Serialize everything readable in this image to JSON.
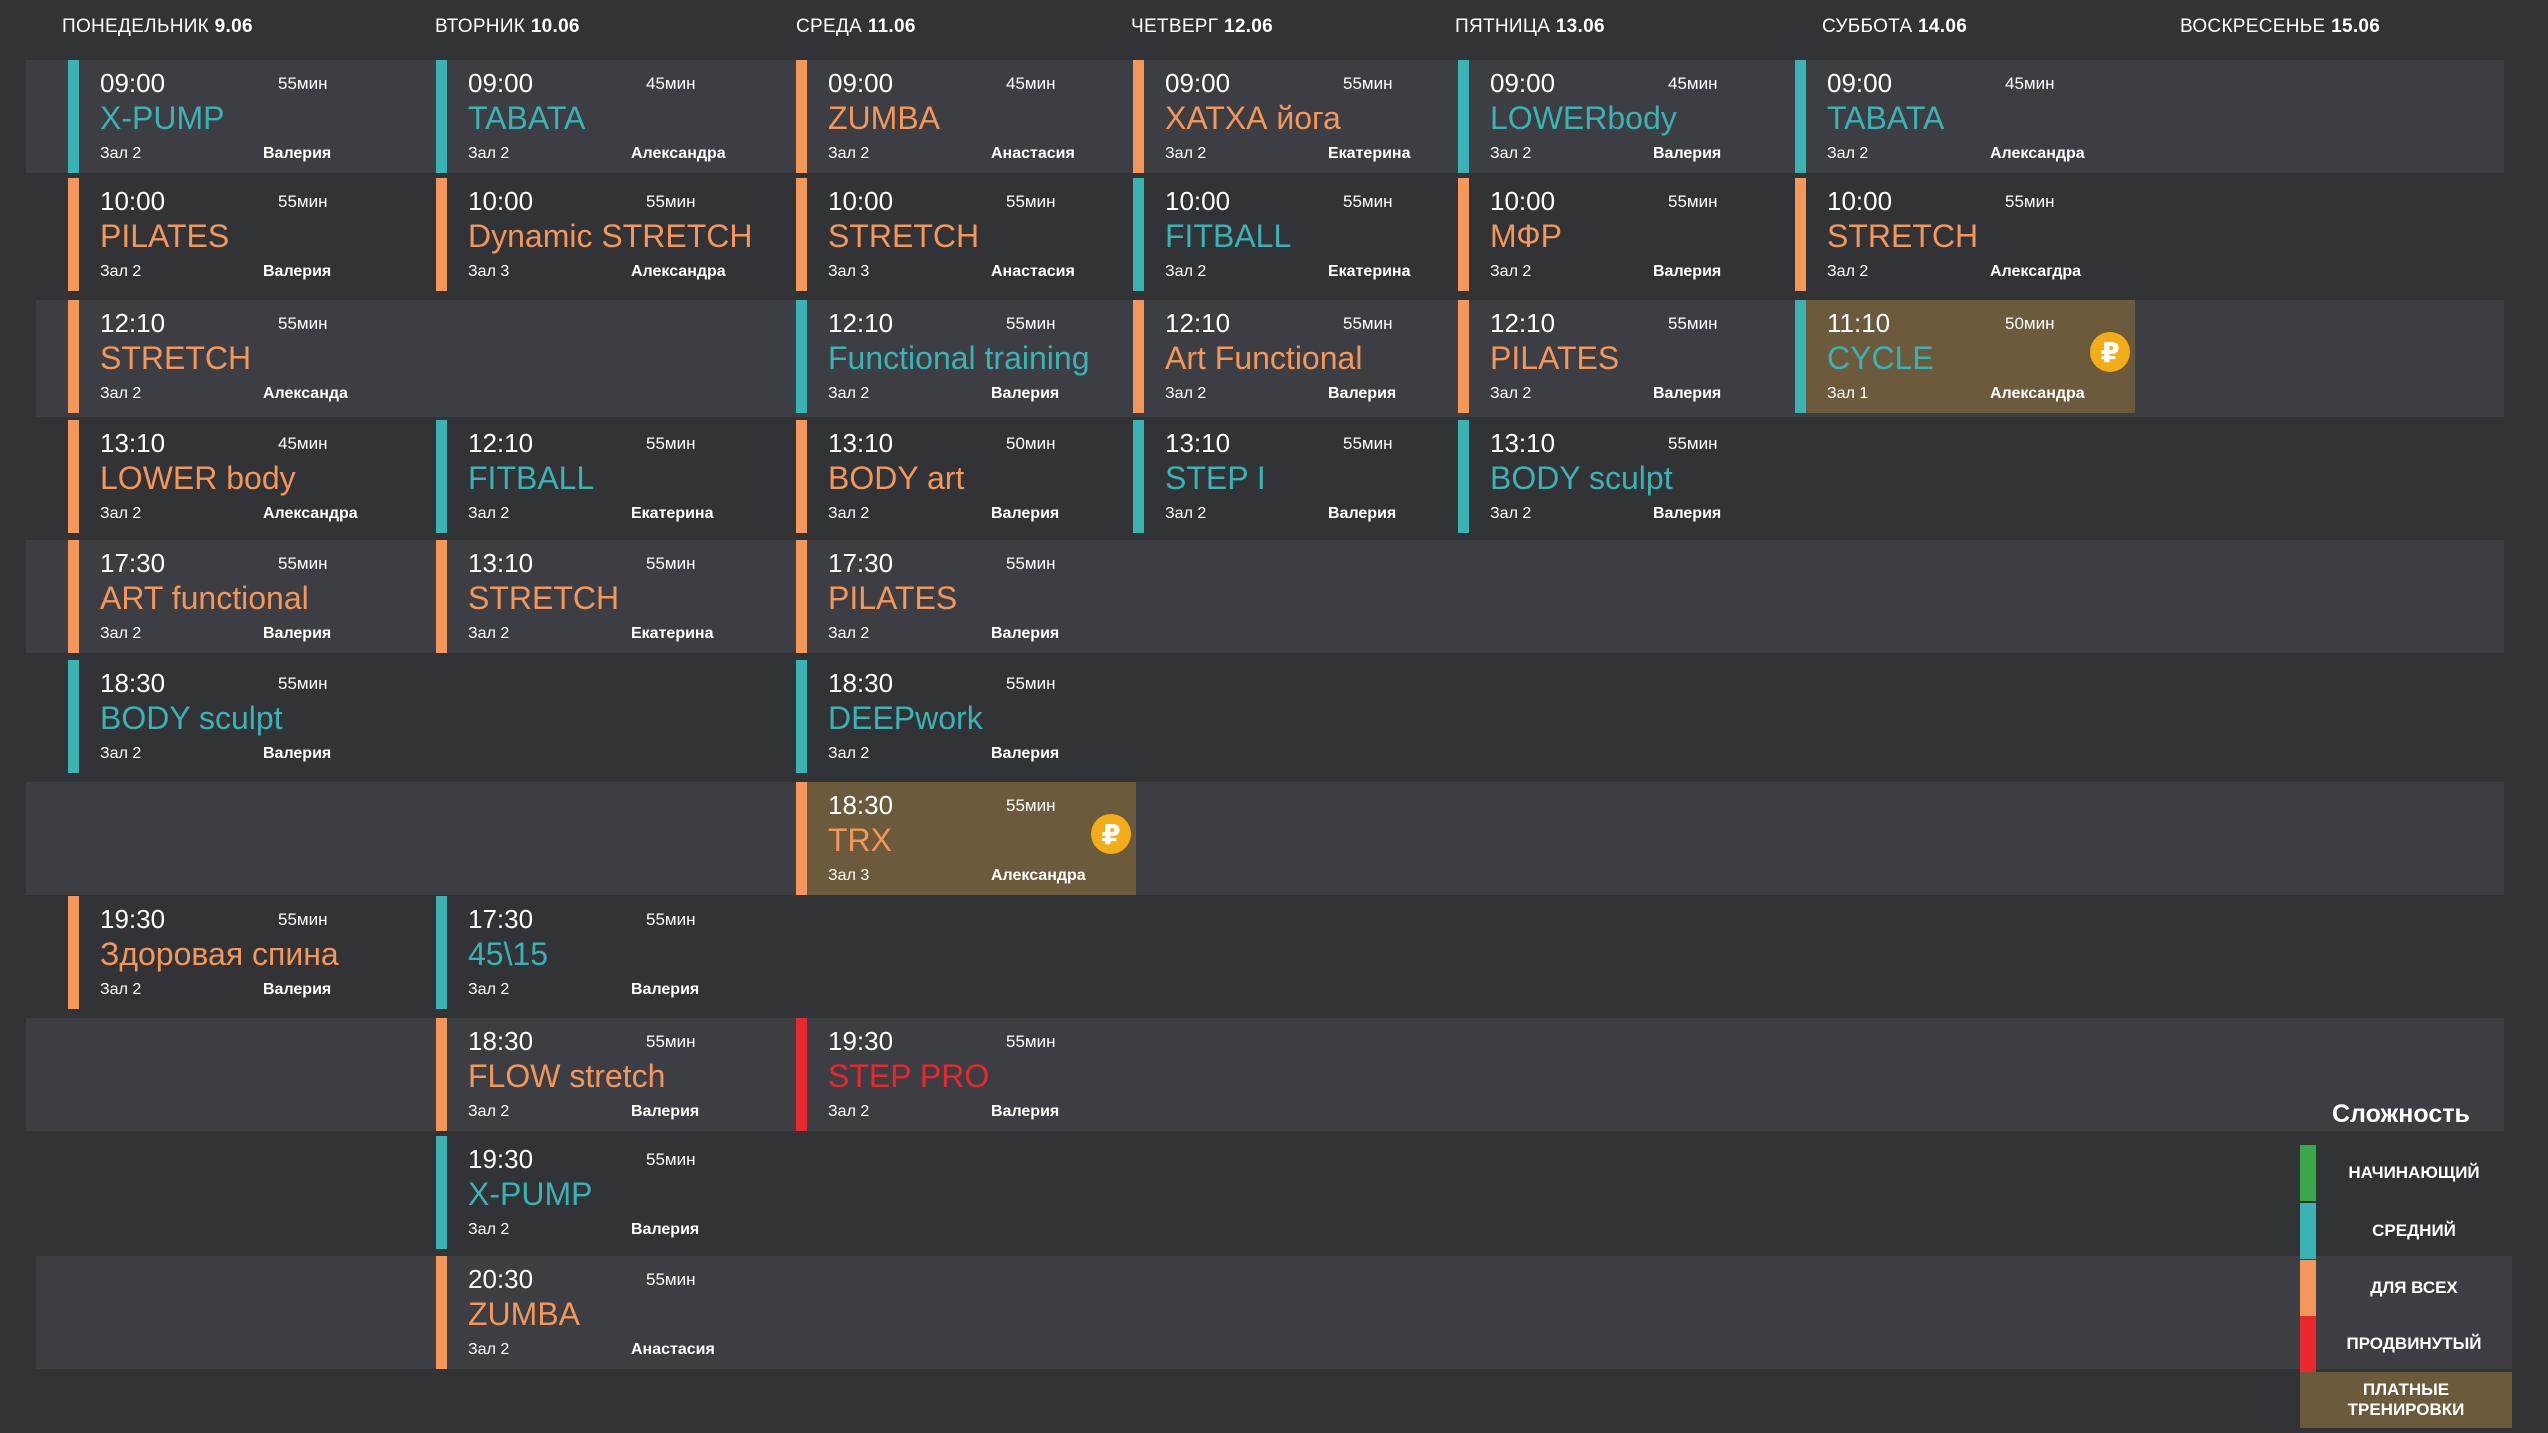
{
  "colors": {
    "beginner": "#3aa84a",
    "medium": "#3bb3b4",
    "everyone": "#f3975a",
    "advanced": "#e8282c",
    "paid": "#6b5a3b",
    "ruble": "#f2ad18"
  },
  "days": [
    {
      "name": "ПОНЕДЕЛЬНИК",
      "date": "9.06"
    },
    {
      "name": "ВТОРНИК",
      "date": "10.06"
    },
    {
      "name": "СРЕДА",
      "date": "11.06"
    },
    {
      "name": "ЧЕТВЕРГ",
      "date": "12.06"
    },
    {
      "name": "ПЯТНИЦА",
      "date": "13.06"
    },
    {
      "name": "СУББОТА",
      "date": "14.06"
    },
    {
      "name": "ВОСКРЕСЕНЬЕ",
      "date": "15.06"
    }
  ],
  "classes": [
    [
      {
        "time": "09:00",
        "name": "X-PUMP",
        "duration": "55мин",
        "room": "Зал 2",
        "trainer": "Валерия",
        "level": "medium",
        "paid": false
      },
      {
        "time": "10:00",
        "name": "PILATES",
        "duration": "55мин",
        "room": "Зал 2",
        "trainer": "Валерия",
        "level": "everyone",
        "paid": false
      },
      {
        "time": "12:10",
        "name": "STRETCH",
        "duration": "55мин",
        "room": "Зал 2",
        "trainer": "Александа",
        "level": "everyone",
        "paid": false
      },
      {
        "time": "13:10",
        "name": "LOWER body",
        "duration": "45мин",
        "room": "Зал 2",
        "trainer": "Александра",
        "level": "everyone",
        "paid": false
      },
      {
        "time": "17:30",
        "name": "ART functional",
        "duration": "55мин",
        "room": "Зал 2",
        "trainer": "Валерия",
        "level": "everyone",
        "paid": false
      },
      {
        "time": "18:30",
        "name": "BODY sculpt",
        "duration": "55мин",
        "room": "Зал 2",
        "trainer": "Валерия",
        "level": "medium",
        "paid": false
      },
      {
        "time": "19:30",
        "name": "Здоровая спина",
        "duration": "55мин",
        "room": "Зал 2",
        "trainer": "Валерия",
        "level": "everyone",
        "paid": false
      }
    ],
    [
      {
        "time": "09:00",
        "name": "TABATA",
        "duration": "45мин",
        "room": "Зал 2",
        "trainer": "Александра",
        "level": "medium",
        "paid": false
      },
      {
        "time": "10:00",
        "name": "Dynamic STRETCH",
        "duration": "55мин",
        "room": "Зал 3",
        "trainer": "Александра",
        "level": "everyone",
        "paid": false
      },
      {
        "time": "12:10",
        "name": "FITBALL",
        "duration": "55мин",
        "room": "Зал 2",
        "trainer": "Екатерина",
        "level": "medium",
        "paid": false
      },
      {
        "time": "13:10",
        "name": "STRETCH",
        "duration": "55мин",
        "room": "Зал 2",
        "trainer": "Екатерина",
        "level": "everyone",
        "paid": false
      },
      {
        "time": "17:30",
        "name": "45\\15",
        "duration": "55мин",
        "room": "Зал 2",
        "trainer": "Валерия",
        "level": "medium",
        "paid": false
      },
      {
        "time": "18:30",
        "name": "FLOW stretch",
        "duration": "55мин",
        "room": "Зал 2",
        "trainer": "Валерия",
        "level": "everyone",
        "paid": false
      },
      {
        "time": "19:30",
        "name": "X-PUMP",
        "duration": "55мин",
        "room": "Зал 2",
        "trainer": "Валерия",
        "level": "medium",
        "paid": false
      },
      {
        "time": "20:30",
        "name": "ZUMBA",
        "duration": "55мин",
        "room": "Зал 2",
        "trainer": "Анастасия",
        "level": "everyone",
        "paid": false
      }
    ],
    [
      {
        "time": "09:00",
        "name": "ZUMBA",
        "duration": "45мин",
        "room": "Зал 2",
        "trainer": "Анастасия",
        "level": "everyone",
        "paid": false
      },
      {
        "time": "10:00",
        "name": "STRETCH",
        "duration": "55мин",
        "room": "Зал 3",
        "trainer": "Анастасия",
        "level": "everyone",
        "paid": false
      },
      {
        "time": "12:10",
        "name": "Functional training",
        "duration": "55мин",
        "room": "Зал 2",
        "trainer": "Валерия",
        "level": "medium",
        "paid": false
      },
      {
        "time": "13:10",
        "name": "BODY art",
        "duration": "50мин",
        "room": "Зал 2",
        "trainer": "Валерия",
        "level": "everyone",
        "paid": false
      },
      {
        "time": "17:30",
        "name": "PILATES",
        "duration": "55мин",
        "room": "Зал 2",
        "trainer": "Валерия",
        "level": "everyone",
        "paid": false
      },
      {
        "time": "18:30",
        "name": "DEEPwork",
        "duration": "55мин",
        "room": "Зал 2",
        "trainer": "Валерия",
        "level": "medium",
        "paid": false
      },
      {
        "time": "18:30",
        "name": "TRX",
        "duration": "55мин",
        "room": "Зал 3",
        "trainer": "Александра",
        "level": "everyone",
        "paid": true,
        "price_symbol": "₽"
      },
      {
        "time": "19:30",
        "name": "STEP PRO",
        "duration": "55мин",
        "room": "Зал 2",
        "trainer": "Валерия",
        "level": "advanced",
        "paid": false
      }
    ],
    [
      {
        "time": "09:00",
        "name": "ХАТХА йога",
        "duration": "55мин",
        "room": "Зал 2",
        "trainer": "Екатерина",
        "level": "everyone",
        "paid": false
      },
      {
        "time": "10:00",
        "name": "FITBALL",
        "duration": "55мин",
        "room": "Зал 2",
        "trainer": "Екатерина",
        "level": "medium",
        "paid": false
      },
      {
        "time": "12:10",
        "name": "Art Functional",
        "duration": "55мин",
        "room": "Зал 2",
        "trainer": "Валерия",
        "level": "everyone",
        "paid": false
      },
      {
        "time": "13:10",
        "name": "STEP I",
        "duration": "55мин",
        "room": "Зал 2",
        "trainer": "Валерия",
        "level": "medium",
        "paid": false
      }
    ],
    [
      {
        "time": "09:00",
        "name": "LOWERbody",
        "duration": "45мин",
        "room": "Зал 2",
        "trainer": "Валерия",
        "level": "medium",
        "paid": false
      },
      {
        "time": "10:00",
        "name": "МФР",
        "duration": "55мин",
        "room": "Зал 2",
        "trainer": "Валерия",
        "level": "everyone",
        "paid": false
      },
      {
        "time": "12:10",
        "name": "PILATES",
        "duration": "55мин",
        "room": "Зал 2",
        "trainer": "Валерия",
        "level": "everyone",
        "paid": false
      },
      {
        "time": "13:10",
        "name": "BODY sculpt",
        "duration": "55мин",
        "room": "Зал 2",
        "trainer": "Валерия",
        "level": "medium",
        "paid": false
      }
    ],
    [
      {
        "time": "09:00",
        "name": "TABATA",
        "duration": "45мин",
        "room": "Зал 2",
        "trainer": "Александра",
        "level": "medium",
        "paid": false
      },
      {
        "time": "10:00",
        "name": "STRETCH",
        "duration": "55мин",
        "room": "Зал 2",
        "trainer": "Алексагдра",
        "level": "everyone",
        "paid": false
      },
      {
        "time": "11:10",
        "name": "CYCLE",
        "duration": "50мин",
        "room": "Зал 1",
        "trainer": "Александра",
        "level": "medium",
        "paid": true,
        "price_symbol": "₽"
      }
    ],
    []
  ],
  "legend": {
    "title": "Сложность",
    "items": [
      {
        "label": "НАЧИНАЮЩИЙ",
        "color": "#3aa84a"
      },
      {
        "label": "СРЕДНИЙ",
        "color": "#3bb3b4"
      },
      {
        "label": "ДЛЯ ВСЕХ",
        "color": "#f3975a"
      },
      {
        "label": "ПРОДВИНУТЫЙ",
        "color": "#e8282c"
      }
    ],
    "paid_label_line1": "ПЛАТНЫЕ",
    "paid_label_line2": "ТРЕНИРОВКИ"
  }
}
